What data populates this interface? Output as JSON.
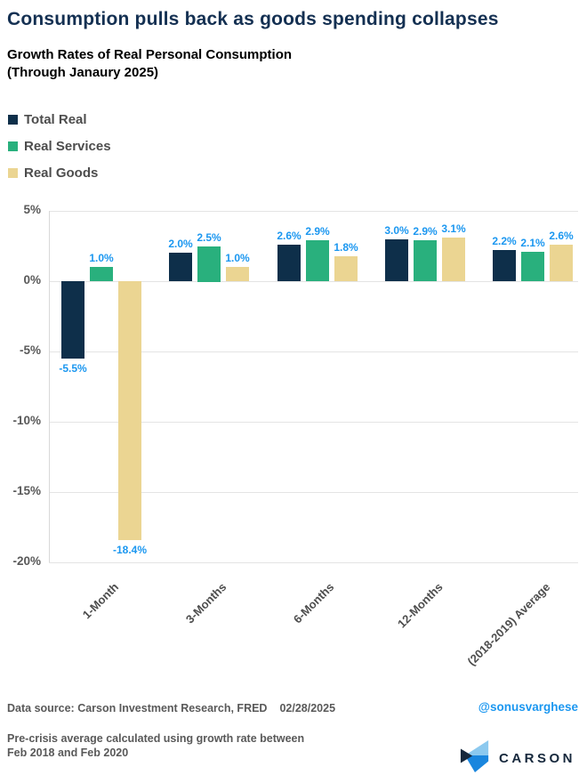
{
  "header": {
    "title": "Consumption pulls back as goods spending collapses",
    "subtitle_line1": "Growth Rates of Real Personal Consumption",
    "subtitle_line2": "(Through Janaury 2025)"
  },
  "palette": {
    "title_navy": "#143052",
    "label_blue": "#1b97f0",
    "text_gray": "#595959",
    "grid_gray": "#e4e4e4"
  },
  "chart_data": {
    "type": "bar",
    "categories": [
      "1-Month",
      "3-Months",
      "6-Months",
      "12-Months",
      "(2018-2019) Average"
    ],
    "series": [
      {
        "name": "Total Real",
        "color": "#0e2f4a",
        "values": [
          -5.5,
          2.0,
          2.6,
          3.0,
          2.2
        ]
      },
      {
        "name": "Real Services",
        "color": "#29b07d",
        "values": [
          1.0,
          2.5,
          2.9,
          2.9,
          2.1
        ]
      },
      {
        "name": "Real Goods",
        "color": "#ebd592",
        "values": [
          -18.4,
          1.0,
          1.8,
          3.1,
          2.6
        ]
      }
    ],
    "value_label_format": "0.0%",
    "yticks": [
      5,
      0,
      -5,
      -10,
      -15,
      -20
    ],
    "ytick_suffix": "%",
    "ylim": [
      -20,
      5
    ],
    "grid": true,
    "legend_position": "top-left",
    "title": "Growth Rates of Real Personal Consumption (Through Janaury 2025)"
  },
  "footer": {
    "data_source": "Data source: Carson Investment Research, FRED",
    "date": "02/28/2025",
    "handle": "@sonusvarghese",
    "note_line1": "Pre-crisis average calculated using growth rate between",
    "note_line2": "Feb 2018 and Feb 2020",
    "brand": "CARSON"
  }
}
